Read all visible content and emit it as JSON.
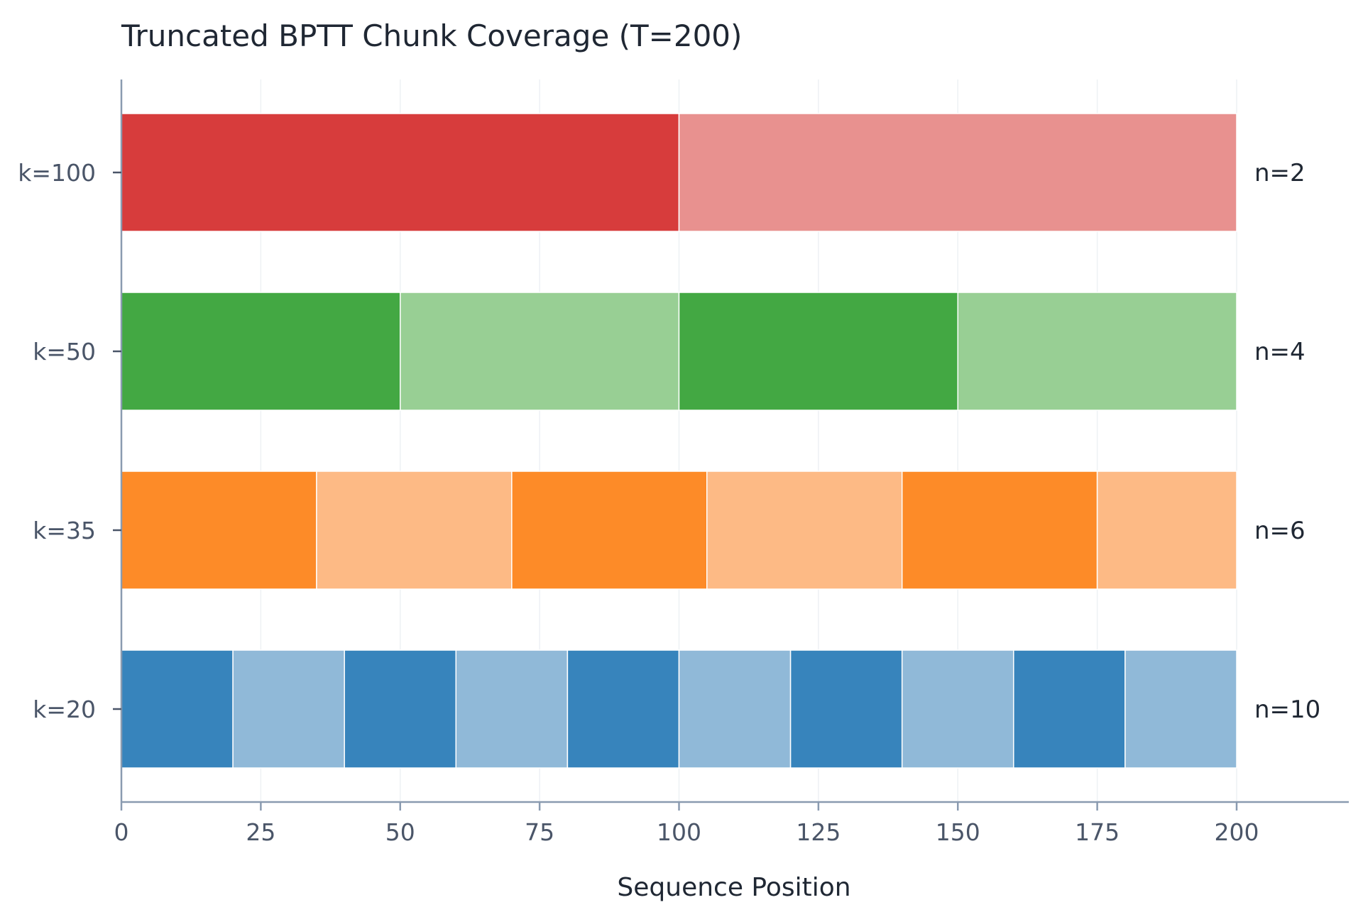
{
  "chart_data": {
    "type": "bar",
    "title": "Truncated BPTT Chunk Coverage (T=200)",
    "xlabel": "Sequence Position",
    "ylabel": "",
    "xlim": [
      0,
      220
    ],
    "x_ticks": [
      0,
      25,
      50,
      75,
      100,
      125,
      150,
      175,
      200
    ],
    "grid": "vertical",
    "sequence_length": 200,
    "rows": [
      {
        "label": "k=100",
        "chunk_size": 100,
        "n_label": "n=2",
        "color_dark": "#d73c3c",
        "color_light": "#e8918f"
      },
      {
        "label": "k=50",
        "chunk_size": 50,
        "n_label": "n=4",
        "color_dark": "#43a843",
        "color_light": "#98cf94"
      },
      {
        "label": "k=35",
        "chunk_size": 35,
        "n_label": "n=6",
        "color_dark": "#fd8b28",
        "color_light": "#fdba85"
      },
      {
        "label": "k=20",
        "chunk_size": 20,
        "n_label": "n=10",
        "color_dark": "#3784bc",
        "color_light": "#90b9d8"
      }
    ]
  }
}
